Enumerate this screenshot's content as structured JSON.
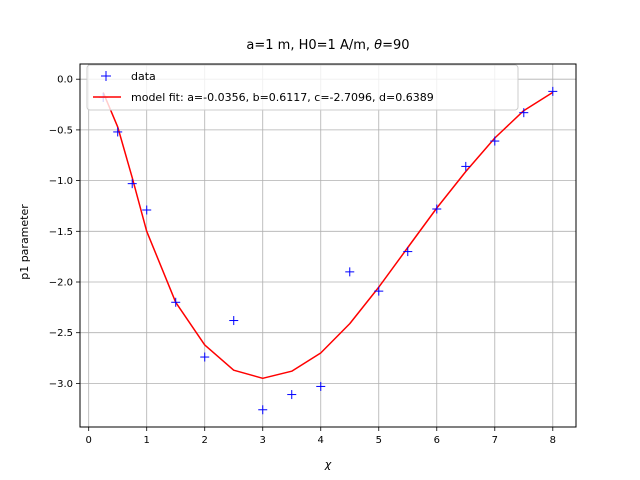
{
  "chart_data": {
    "type": "line",
    "title_parts": {
      "prefix": "a=1 m, H0=1 A/m, ",
      "theta": "θ",
      "suffix": "=90"
    },
    "xlabel": "χ",
    "ylabel": "p1 parameter",
    "xlim": [
      -0.15,
      8.4
    ],
    "ylim": [
      -3.43,
      0.15
    ],
    "xticks": [
      0,
      1,
      2,
      3,
      4,
      5,
      6,
      7,
      8
    ],
    "yticks": [
      0.0,
      -0.5,
      -1.0,
      -1.5,
      -2.0,
      -2.5,
      -3.0
    ],
    "ytick_labels": [
      "0.0",
      "−0.5",
      "−1.0",
      "−1.5",
      "−2.0",
      "−2.5",
      "−3.0"
    ],
    "grid": true,
    "legend": {
      "placement": "top-left"
    },
    "series": [
      {
        "name": "data",
        "kind": "scatter",
        "marker": "plus",
        "color": "#0000ff",
        "x": [
          0.25,
          0.5,
          0.75,
          1.0,
          1.5,
          2.0,
          2.5,
          3.0,
          3.5,
          4.0,
          4.5,
          5.0,
          5.5,
          6.0,
          6.5,
          7.0,
          7.5,
          8.0
        ],
        "y": [
          -0.18,
          -0.52,
          -1.03,
          -1.29,
          -2.2,
          -2.74,
          -2.38,
          -3.26,
          -3.11,
          -3.03,
          -1.9,
          -2.09,
          -1.7,
          -1.28,
          -0.86,
          -0.61,
          -0.33,
          -0.12
        ]
      },
      {
        "name": "model fit: a=-0.0356, b=0.6117, c=-2.7096, d=0.6389",
        "kind": "line",
        "color": "#ff0000",
        "x": [
          0.25,
          0.5,
          0.75,
          1.0,
          1.5,
          2.0,
          2.5,
          3.0,
          3.5,
          4.0,
          4.5,
          5.0,
          5.5,
          6.0,
          6.5,
          7.0,
          7.5,
          8.0
        ],
        "y": [
          -0.13,
          -0.47,
          -0.97,
          -1.5,
          -2.2,
          -2.62,
          -2.87,
          -2.95,
          -2.88,
          -2.7,
          -2.41,
          -2.05,
          -1.66,
          -1.27,
          -0.91,
          -0.58,
          -0.31,
          -0.13
        ]
      }
    ]
  }
}
